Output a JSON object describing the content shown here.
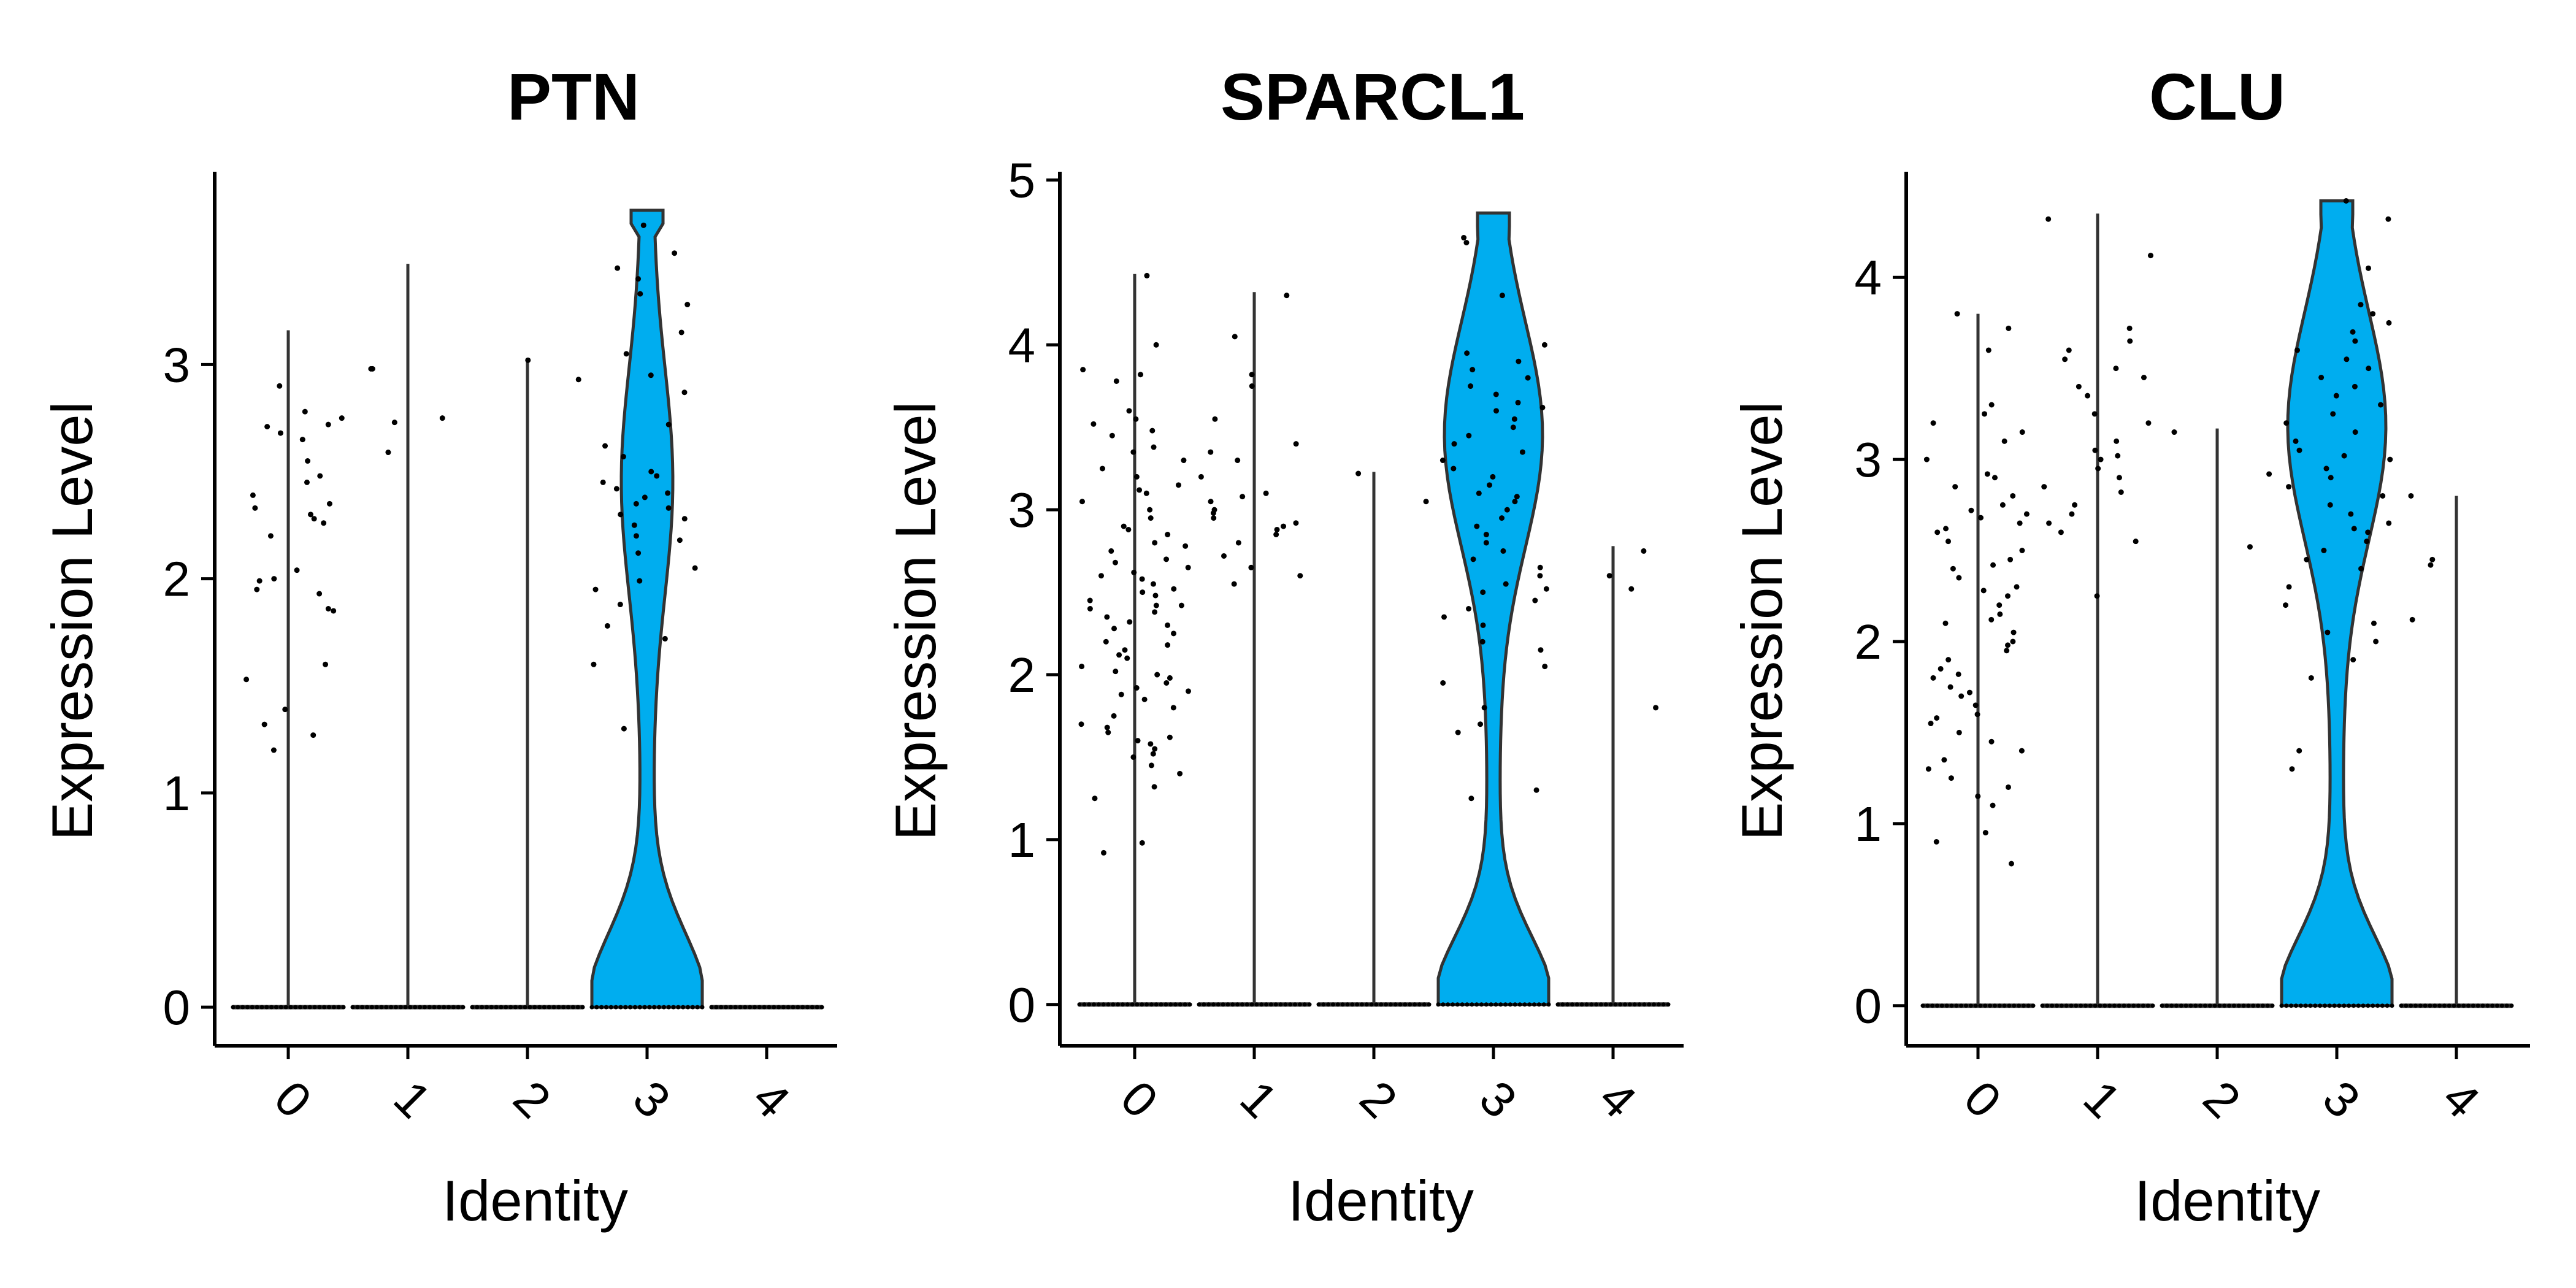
{
  "chart_data": [
    {
      "type": "violin",
      "title": "PTN",
      "xlabel": "Identity",
      "ylabel": "Expression Level",
      "categories": [
        "0",
        "1",
        "2",
        "3",
        "4"
      ],
      "yticks": [
        0,
        1,
        2,
        3
      ],
      "ylim": [
        -0.18,
        3.9
      ],
      "fill_color": "#00ADEF",
      "groups": [
        {
          "category": "0",
          "max": 3.16,
          "points": [
            2.78,
            2.71,
            2.65,
            2.75,
            2.55,
            2.45,
            2.39,
            2.35,
            2.3,
            2.26,
            2.28,
            2.2,
            2.48,
            2.33,
            2.04,
            1.99,
            1.95,
            1.93,
            1.86,
            1.6,
            1.53,
            1.39,
            1.27,
            1.2,
            1.32,
            2.0,
            1.85,
            2.72,
            2.9,
            2.68
          ]
        },
        {
          "category": "1",
          "max": 3.47,
          "points": [
            2.75,
            2.98,
            2.98,
            2.59,
            2.73
          ]
        },
        {
          "category": "2",
          "max": 3.02,
          "points": [
            3.02,
            2.93
          ]
        },
        {
          "category": "3",
          "max": 3.72,
          "points": [
            3.65,
            3.52,
            3.45,
            3.33,
            3.28,
            3.15,
            3.05,
            2.95,
            2.87,
            2.72,
            2.62,
            2.48,
            2.45,
            2.4,
            2.35,
            2.33,
            2.3,
            2.25,
            2.2,
            2.12,
            2.05,
            1.99,
            1.95,
            1.88,
            1.78,
            1.72,
            1.6,
            1.3,
            2.57,
            3.4,
            2.42,
            2.18,
            2.38,
            2.5,
            2.28
          ]
        },
        {
          "category": "4",
          "max": 0,
          "points": []
        }
      ]
    },
    {
      "type": "violin",
      "title": "SPARCL1",
      "xlabel": "Identity",
      "ylabel": "Expression Level",
      "categories": [
        "0",
        "1",
        "2",
        "3",
        "4"
      ],
      "yticks": [
        0,
        1,
        2,
        3,
        4,
        5
      ],
      "ylim": [
        -0.25,
        5.05
      ],
      "fill_color": "#00ADEF",
      "groups": [
        {
          "category": "0",
          "max": 4.43,
          "points": [
            4.42,
            4.0,
            3.85,
            3.82,
            3.6,
            3.55,
            3.48,
            3.45,
            3.35,
            3.3,
            3.25,
            3.2,
            3.15,
            3.1,
            3.05,
            3.0,
            2.95,
            2.9,
            2.85,
            2.8,
            2.75,
            2.7,
            2.65,
            2.62,
            2.6,
            2.58,
            2.55,
            2.52,
            2.5,
            2.48,
            2.45,
            2.42,
            2.4,
            2.35,
            2.32,
            2.3,
            2.28,
            2.25,
            2.2,
            2.18,
            2.15,
            2.1,
            2.05,
            2.02,
            2.0,
            1.98,
            1.95,
            1.9,
            1.85,
            1.8,
            1.75,
            1.7,
            1.65,
            1.6,
            1.58,
            1.55,
            1.52,
            1.5,
            1.45,
            1.4,
            1.32,
            1.25,
            0.98,
            0.92,
            3.38,
            2.88,
            2.68,
            2.38,
            2.12,
            1.88,
            1.68,
            3.78,
            3.52,
            3.12,
            2.78,
            2.42,
            1.92,
            1.62
          ]
        },
        {
          "category": "1",
          "max": 4.32,
          "points": [
            4.3,
            4.05,
            3.82,
            3.75,
            3.55,
            3.4,
            3.3,
            3.2,
            3.1,
            3.08,
            3.05,
            3.0,
            2.98,
            2.95,
            2.9,
            2.88,
            2.85,
            2.8,
            2.72,
            2.65,
            2.6,
            2.55,
            3.35,
            2.92
          ]
        },
        {
          "category": "2",
          "max": 3.23,
          "points": [
            3.22,
            3.05
          ]
        },
        {
          "category": "3",
          "max": 4.8,
          "points": [
            4.65,
            4.62,
            4.3,
            4.0,
            3.95,
            3.9,
            3.85,
            3.8,
            3.75,
            3.7,
            3.65,
            3.6,
            3.55,
            3.5,
            3.45,
            3.4,
            3.35,
            3.3,
            3.25,
            3.2,
            3.15,
            3.1,
            3.05,
            3.0,
            2.95,
            2.9,
            2.85,
            2.8,
            2.75,
            2.7,
            2.65,
            2.6,
            2.55,
            2.5,
            2.45,
            2.4,
            2.35,
            2.3,
            2.2,
            2.15,
            2.05,
            1.95,
            1.8,
            1.7,
            1.65,
            1.3,
            1.25,
            3.62,
            3.08,
            2.52
          ]
        },
        {
          "category": "4",
          "max": 2.78,
          "points": [
            2.75,
            2.6,
            2.52,
            1.8
          ]
        }
      ]
    },
    {
      "type": "violin",
      "title": "CLU",
      "xlabel": "Identity",
      "ylabel": "Expression Level",
      "categories": [
        "0",
        "1",
        "2",
        "3",
        "4"
      ],
      "yticks": [
        0,
        1,
        2,
        3,
        4
      ],
      "ylim": [
        -0.22,
        4.58
      ],
      "fill_color": "#00ADEF",
      "groups": [
        {
          "category": "0",
          "max": 3.8,
          "points": [
            3.8,
            3.72,
            3.6,
            3.3,
            3.25,
            3.2,
            3.15,
            3.1,
            3.0,
            2.9,
            2.85,
            2.8,
            2.75,
            2.7,
            2.68,
            2.65,
            2.62,
            2.6,
            2.55,
            2.5,
            2.45,
            2.4,
            2.35,
            2.3,
            2.25,
            2.2,
            2.15,
            2.1,
            2.05,
            2.0,
            1.95,
            1.9,
            1.85,
            1.8,
            1.75,
            1.7,
            1.65,
            1.6,
            1.55,
            1.5,
            1.45,
            1.4,
            1.35,
            1.3,
            1.25,
            1.2,
            1.15,
            1.1,
            0.95,
            0.9,
            0.78,
            2.72,
            2.42,
            2.12,
            1.82,
            1.58,
            2.92,
            2.28,
            1.98,
            1.72
          ]
        },
        {
          "category": "1",
          "max": 4.35,
          "points": [
            4.32,
            4.12,
            3.72,
            3.65,
            3.6,
            3.55,
            3.5,
            3.45,
            3.35,
            3.25,
            3.2,
            3.1,
            3.05,
            3.02,
            3.0,
            2.95,
            2.9,
            2.82,
            2.75,
            2.7,
            2.65,
            2.6,
            2.55,
            2.25,
            3.4,
            2.85
          ]
        },
        {
          "category": "2",
          "max": 3.17,
          "points": [
            3.15,
            2.92,
            2.52
          ]
        },
        {
          "category": "3",
          "max": 4.42,
          "points": [
            4.42,
            4.32,
            4.05,
            3.85,
            3.8,
            3.75,
            3.7,
            3.65,
            3.6,
            3.5,
            3.45,
            3.4,
            3.35,
            3.3,
            3.25,
            3.2,
            3.15,
            3.1,
            3.05,
            3.0,
            2.95,
            2.9,
            2.85,
            2.8,
            2.75,
            2.7,
            2.65,
            2.6,
            2.55,
            2.5,
            2.45,
            2.4,
            2.3,
            2.2,
            2.1,
            2.05,
            2.0,
            1.9,
            1.8,
            1.4,
            1.3,
            3.55,
            3.02,
            2.62
          ]
        },
        {
          "category": "4",
          "max": 2.8,
          "points": [
            2.8,
            2.45,
            2.42,
            2.12
          ]
        }
      ]
    }
  ]
}
